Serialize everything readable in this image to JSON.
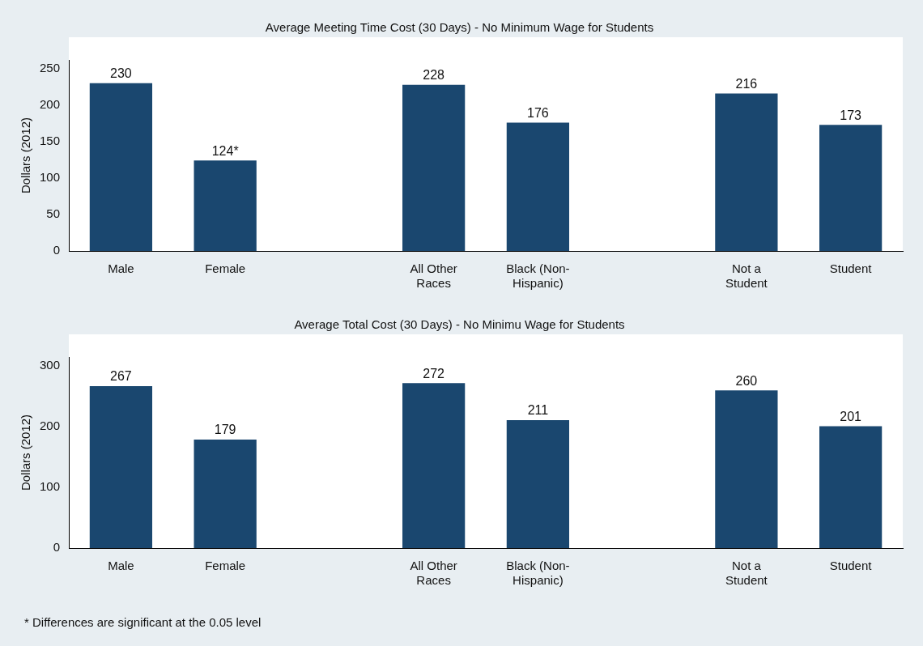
{
  "chart_data": [
    {
      "type": "bar",
      "title": "Average Meeting Time Cost (30 Days) - No Minimum Wage for Students",
      "ylabel": "Dollars (2012)",
      "categories": [
        "Male",
        "Female",
        null,
        "All Other Races",
        "Black (Non-Hispanic)",
        null,
        "Not a Student",
        "Student"
      ],
      "values": [
        230,
        124,
        null,
        228,
        176,
        null,
        216,
        173
      ],
      "value_labels": [
        "230",
        "124*",
        null,
        "228",
        "176",
        null,
        "216",
        "173"
      ],
      "color": "#1a476f",
      "ylim": [
        0,
        262
      ],
      "yticks": [
        0,
        50,
        100,
        150,
        200,
        250
      ],
      "grid": false,
      "legend": false
    },
    {
      "type": "bar",
      "title": "Average Total Cost (30 Days) - No Minimu Wage for Students",
      "ylabel": "Dollars (2012)",
      "categories": [
        "Male",
        "Female",
        null,
        "All Other Races",
        "Black (Non-Hispanic)",
        null,
        "Not a Student",
        "Student"
      ],
      "values": [
        267,
        179,
        null,
        272,
        211,
        null,
        260,
        201
      ],
      "data_labels": true,
      "color": "#1a476f",
      "ylim": [
        0,
        315
      ],
      "yticks": [
        0,
        100,
        200,
        300
      ],
      "grid": false,
      "legend": false,
      "annotations": [
        "* Differences are significant at the 0.05 level"
      ]
    }
  ]
}
